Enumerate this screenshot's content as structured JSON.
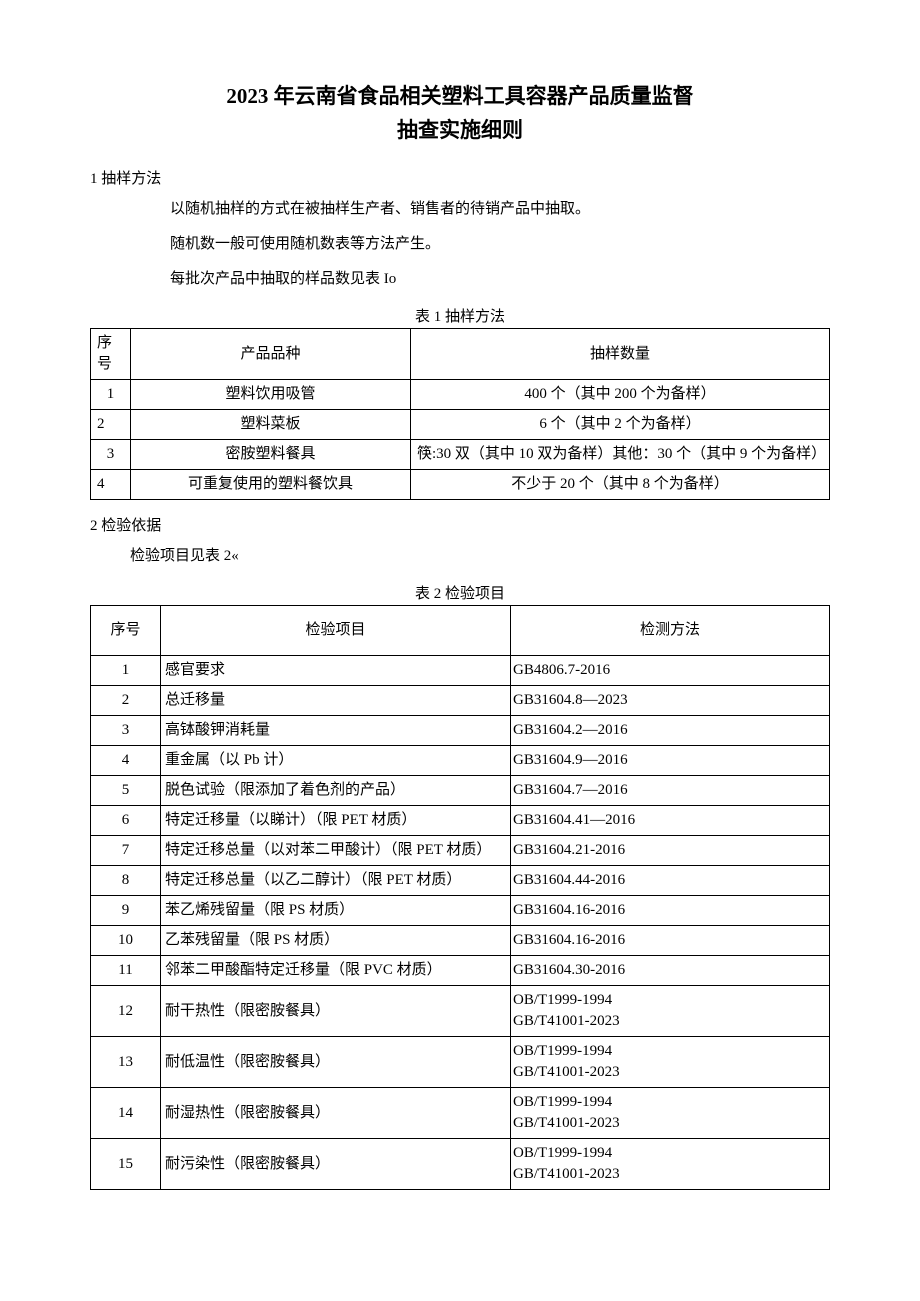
{
  "title_line1": "2023 年云南省食品相关塑料工具容器产品质量监督",
  "title_line2": "抽查实施细则",
  "section1": "1 抽样方法",
  "p1": "以随机抽样的方式在被抽样生产者、销售者的待销产品中抽取。",
  "p2": "随机数一般可使用随机数表等方法产生。",
  "p3": "每批次产品中抽取的样品数见表 Io",
  "table1_caption": "表 1 抽样方法",
  "t1": {
    "h1": "序号",
    "h2": "产品品种",
    "h3": "抽样数量",
    "rows": [
      {
        "n": "1",
        "kind": "塑料饮用吸管",
        "qty": "400 个（其中 200 个为备样）"
      },
      {
        "n": "2",
        "kind": "塑料菜板",
        "qty": "6 个（其中 2 个为备样）"
      },
      {
        "n": "3",
        "kind": "密胺塑料餐具",
        "qty": "筷:30 双（其中 10 双为备样）其他：30 个（其中 9 个为备样）"
      },
      {
        "n": "4",
        "kind": "可重复使用的塑料餐饮具",
        "qty": "不少于 20 个（其中 8 个为备样）"
      }
    ]
  },
  "section2": "2 检验依据",
  "p4": "检验项目见表 2«",
  "table2_caption": "表 2 检验项目",
  "t2": {
    "h1": "序号",
    "h2": "检验项目",
    "h3": "检测方法",
    "rows": [
      {
        "n": "1",
        "item": "感官要求",
        "method": "GB4806.7-2016"
      },
      {
        "n": "2",
        "item": "总迁移量",
        "method": "GB31604.8—2023"
      },
      {
        "n": "3",
        "item": "高钵酸钾消耗量",
        "method": "GB31604.2—2016"
      },
      {
        "n": "4",
        "item": "重金属（以 Pb 计）",
        "method": "GB31604.9—2016"
      },
      {
        "n": "5",
        "item": "脱色试验（限添加了着色剂的产品）",
        "method": "GB31604.7—2016"
      },
      {
        "n": "6",
        "item": "特定迁移量（以睇计）（限 PET 材质）",
        "method": "GB31604.41—2016"
      },
      {
        "n": "7",
        "item": "特定迁移总量（以对苯二甲酸计）（限 PET 材质）",
        "method": "GB31604.21-2016"
      },
      {
        "n": "8",
        "item": "特定迁移总量（以乙二醇计）（限 PET 材质）",
        "method": "GB31604.44-2016"
      },
      {
        "n": "9",
        "item": "苯乙烯残留量（限 PS 材质）",
        "method": "GB31604.16-2016"
      },
      {
        "n": "10",
        "item": "乙苯残留量（限 PS 材质）",
        "method": "GB31604.16-2016"
      },
      {
        "n": "11",
        "item": "邻苯二甲酸酯特定迁移量（限 PVC 材质）",
        "method": "GB31604.30-2016"
      },
      {
        "n": "12",
        "item": "耐干热性（限密胺餐具）",
        "method": "OB/T1999-1994\nGB/T41001-2023"
      },
      {
        "n": "13",
        "item": "耐低温性（限密胺餐具）",
        "method": "OB/T1999-1994\nGB/T41001-2023"
      },
      {
        "n": "14",
        "item": "耐湿热性（限密胺餐具）",
        "method": "OB/T1999-1994\nGB/T41001-2023"
      },
      {
        "n": "15",
        "item": "耐污染性（限密胺餐具）",
        "method": "OB/T1999-1994\nGB/T41001-2023"
      }
    ]
  }
}
